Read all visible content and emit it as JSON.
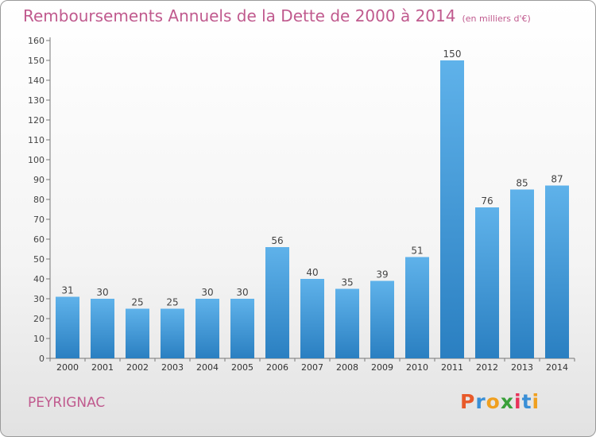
{
  "header": {
    "title": "Remboursements Annuels de la Dette de 2000 à 2014",
    "subtitle": "(en milliers d'€)"
  },
  "footer": {
    "commune": "PEYRIGNAC",
    "logo_text": "Proxiti"
  },
  "colors": {
    "title": "#c05a8e",
    "bar_light": "#5fb2ea",
    "bar_dark": "#2a7fc1",
    "logo_letters": [
      "#e85a2a",
      "#3a8fd6",
      "#f0a020",
      "#3aa03a",
      "#e8335a",
      "#3a8fd6",
      "#f0a020"
    ]
  },
  "chart_data": {
    "type": "bar",
    "categories": [
      "2000",
      "2001",
      "2002",
      "2003",
      "2004",
      "2005",
      "2006",
      "2007",
      "2008",
      "2009",
      "2010",
      "2011",
      "2012",
      "2013",
      "2014"
    ],
    "values": [
      31,
      30,
      25,
      25,
      30,
      30,
      56,
      40,
      35,
      39,
      51,
      150,
      76,
      85,
      87
    ],
    "ylim": [
      0,
      160
    ],
    "ytick_step": 10,
    "grid": false,
    "data_labels": true
  }
}
